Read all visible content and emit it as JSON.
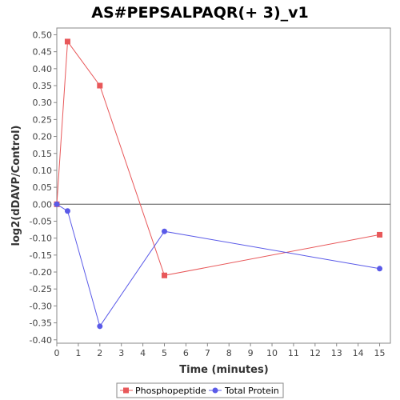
{
  "chart_data": {
    "type": "line",
    "title": "AS#PEPSALPAQR(+ 3)_v1",
    "xlabel": "Time (minutes)",
    "ylabel": "log2(dDAVP/Control)",
    "xlim": [
      0,
      15.5
    ],
    "ylim": [
      -0.41,
      0.52
    ],
    "x_ticks": [
      0,
      1,
      2,
      3,
      4,
      5,
      6,
      7,
      8,
      9,
      10,
      11,
      12,
      13,
      14,
      15
    ],
    "y_ticks": [
      0.5,
      0.45,
      0.4,
      0.35,
      0.3,
      0.25,
      0.2,
      0.15,
      0.1,
      0.05,
      0.0,
      -0.05,
      -0.1,
      -0.15,
      -0.2,
      -0.25,
      -0.3,
      -0.35,
      -0.4
    ],
    "y_tick_labels": [
      "0.50",
      "0.45",
      "0.40",
      "0.35",
      "0.30",
      "0.25",
      "0.20",
      "0.15",
      "0.10",
      "0.05",
      "0.00",
      "-0.05",
      "-0.10",
      "-0.15",
      "-0.20",
      "-0.25",
      "-0.30",
      "-0.35",
      "-0.40"
    ],
    "grid": false,
    "zero_line": true,
    "legend_position": "bottom",
    "series": [
      {
        "name": "Phosphopeptide",
        "color": "#e8585a",
        "marker": "square",
        "x": [
          0,
          0.5,
          2,
          5,
          15
        ],
        "y": [
          0.0,
          0.48,
          0.35,
          -0.21,
          -0.09
        ]
      },
      {
        "name": "Total Protein",
        "color": "#5a5ae8",
        "marker": "circle",
        "x": [
          0,
          0.5,
          2,
          5,
          15
        ],
        "y": [
          0.0,
          -0.02,
          -0.36,
          -0.08,
          -0.19
        ]
      }
    ]
  }
}
